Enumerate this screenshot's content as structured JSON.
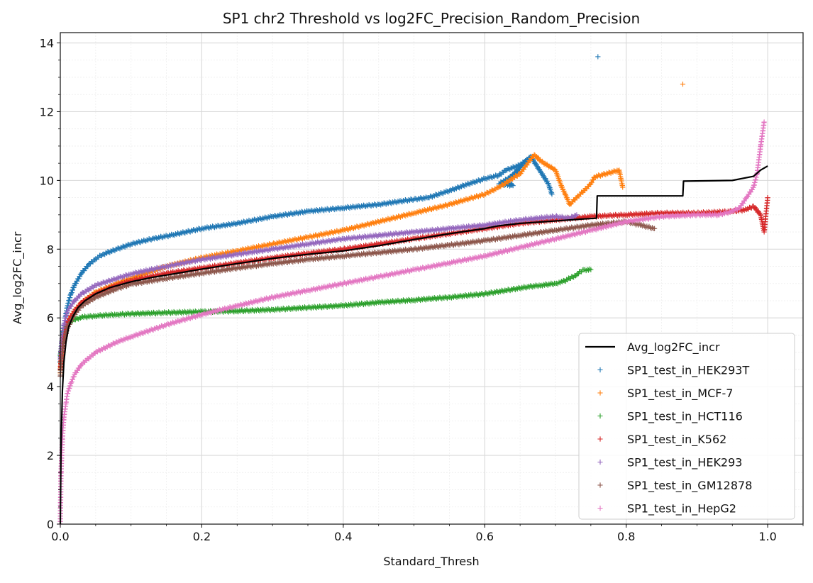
{
  "chart_data": {
    "type": "scatter",
    "title": "SP1 chr2 Threshold vs log2FC_Precision_Random_Precision",
    "xlabel": "Standard_Thresh",
    "ylabel": "Avg_log2FC_incr",
    "xlim": [
      0.0,
      1.05
    ],
    "ylim": [
      0,
      14.3
    ],
    "xticks": [
      0.0,
      0.2,
      0.4,
      0.6,
      0.8,
      1.0
    ],
    "xtick_labels": [
      "0.0",
      "0.2",
      "0.4",
      "0.6",
      "0.8",
      "1.0"
    ],
    "yticks": [
      0,
      2,
      4,
      6,
      8,
      10,
      12,
      14
    ],
    "ytick_labels": [
      "0",
      "2",
      "4",
      "6",
      "8",
      "10",
      "12",
      "14"
    ],
    "grid": true,
    "minor_grid": true,
    "legend_position": "lower-right",
    "line": {
      "name": "Avg_log2FC_incr",
      "color": "#000000",
      "x": [
        0.0,
        0.001,
        0.003,
        0.005,
        0.008,
        0.012,
        0.018,
        0.025,
        0.035,
        0.05,
        0.07,
        0.1,
        0.13,
        0.16,
        0.2,
        0.25,
        0.3,
        0.35,
        0.4,
        0.45,
        0.5,
        0.55,
        0.6,
        0.62,
        0.65,
        0.7,
        0.72,
        0.74,
        0.758,
        0.759,
        0.8,
        0.85,
        0.88,
        0.881,
        0.95,
        0.98,
        0.99,
        1.0
      ],
      "y": [
        0.0,
        2.2,
        3.9,
        4.7,
        5.3,
        5.75,
        6.05,
        6.3,
        6.5,
        6.7,
        6.88,
        7.05,
        7.18,
        7.28,
        7.42,
        7.58,
        7.73,
        7.85,
        7.95,
        8.1,
        8.28,
        8.45,
        8.6,
        8.68,
        8.75,
        8.82,
        8.85,
        8.88,
        8.9,
        9.55,
        9.55,
        9.55,
        9.55,
        9.98,
        10.0,
        10.12,
        10.3,
        10.42
      ]
    },
    "series": [
      {
        "name": "SP1_test_in_HEK293T",
        "color": "#1f77b4",
        "x": [
          0.0,
          0.002,
          0.004,
          0.007,
          0.01,
          0.015,
          0.02,
          0.03,
          0.04,
          0.05,
          0.06,
          0.08,
          0.1,
          0.13,
          0.16,
          0.2,
          0.25,
          0.3,
          0.35,
          0.4,
          0.45,
          0.5,
          0.52,
          0.55,
          0.57,
          0.6,
          0.62,
          0.63,
          0.65,
          0.66,
          0.63,
          0.64,
          0.62,
          0.645,
          0.655,
          0.665,
          0.69,
          0.695,
          0.76
        ],
        "y": [
          4.7,
          5.2,
          5.6,
          6.0,
          6.35,
          6.7,
          6.95,
          7.3,
          7.55,
          7.72,
          7.85,
          8.0,
          8.15,
          8.3,
          8.42,
          8.6,
          8.75,
          8.95,
          9.1,
          9.2,
          9.3,
          9.45,
          9.5,
          9.7,
          9.85,
          10.05,
          10.15,
          10.3,
          10.45,
          10.6,
          9.95,
          9.85,
          9.9,
          10.2,
          10.5,
          10.7,
          9.9,
          9.6,
          13.6
        ]
      },
      {
        "name": "SP1_test_in_MCF-7",
        "color": "#ff7f0e",
        "x": [
          0.0,
          0.002,
          0.005,
          0.01,
          0.02,
          0.03,
          0.05,
          0.08,
          0.1,
          0.15,
          0.2,
          0.25,
          0.3,
          0.35,
          0.4,
          0.45,
          0.5,
          0.55,
          0.6,
          0.62,
          0.65,
          0.67,
          0.68,
          0.7,
          0.71,
          0.715,
          0.72,
          0.73,
          0.74,
          0.75,
          0.755,
          0.79,
          0.795,
          0.88
        ],
        "y": [
          4.4,
          5.0,
          5.5,
          5.9,
          6.2,
          6.45,
          6.75,
          7.0,
          7.15,
          7.5,
          7.75,
          7.95,
          8.15,
          8.35,
          8.55,
          8.8,
          9.05,
          9.3,
          9.6,
          9.8,
          10.2,
          10.75,
          10.55,
          10.3,
          9.75,
          9.55,
          9.3,
          9.5,
          9.7,
          9.9,
          10.1,
          10.3,
          9.8,
          12.8
        ]
      },
      {
        "name": "SP1_test_in_HCT116",
        "color": "#2ca02c",
        "x": [
          0.0,
          0.003,
          0.006,
          0.01,
          0.02,
          0.03,
          0.05,
          0.08,
          0.1,
          0.15,
          0.2,
          0.25,
          0.3,
          0.35,
          0.4,
          0.45,
          0.5,
          0.55,
          0.6,
          0.63,
          0.66,
          0.68,
          0.7,
          0.71,
          0.72,
          0.73,
          0.735,
          0.74,
          0.75
        ],
        "y": [
          4.9,
          5.4,
          5.7,
          5.85,
          5.95,
          6.02,
          6.06,
          6.1,
          6.12,
          6.15,
          6.18,
          6.2,
          6.24,
          6.3,
          6.36,
          6.45,
          6.52,
          6.6,
          6.7,
          6.8,
          6.9,
          6.95,
          7.0,
          7.05,
          7.15,
          7.25,
          7.35,
          7.4,
          7.4
        ]
      },
      {
        "name": "SP1_test_in_K562",
        "color": "#d62728",
        "x": [
          0.0,
          0.002,
          0.005,
          0.01,
          0.02,
          0.03,
          0.05,
          0.08,
          0.1,
          0.15,
          0.2,
          0.25,
          0.3,
          0.35,
          0.4,
          0.45,
          0.5,
          0.55,
          0.6,
          0.65,
          0.7,
          0.75,
          0.8,
          0.85,
          0.9,
          0.95,
          0.97,
          0.98,
          0.99,
          0.995,
          1.0
        ],
        "y": [
          4.5,
          5.0,
          5.5,
          5.9,
          6.2,
          6.45,
          6.7,
          6.95,
          7.08,
          7.3,
          7.45,
          7.6,
          7.75,
          7.88,
          8.0,
          8.15,
          8.3,
          8.45,
          8.6,
          8.75,
          8.85,
          8.95,
          9.0,
          9.05,
          9.05,
          9.1,
          9.15,
          9.25,
          9.0,
          8.5,
          9.5
        ]
      },
      {
        "name": "SP1_test_in_HEK293",
        "color": "#9467bd",
        "x": [
          0.0,
          0.002,
          0.005,
          0.01,
          0.02,
          0.03,
          0.05,
          0.08,
          0.1,
          0.15,
          0.2,
          0.25,
          0.3,
          0.35,
          0.4,
          0.45,
          0.5,
          0.55,
          0.6,
          0.65,
          0.7,
          0.72,
          0.73
        ],
        "y": [
          4.8,
          5.3,
          5.8,
          6.2,
          6.5,
          6.7,
          6.95,
          7.15,
          7.28,
          7.5,
          7.7,
          7.85,
          8.0,
          8.15,
          8.3,
          8.4,
          8.5,
          8.6,
          8.7,
          8.85,
          8.95,
          8.9,
          9.0
        ]
      },
      {
        "name": "SP1_test_in_GM12878",
        "color": "#8c564b",
        "x": [
          0.0,
          0.002,
          0.005,
          0.01,
          0.02,
          0.03,
          0.05,
          0.08,
          0.1,
          0.15,
          0.2,
          0.25,
          0.3,
          0.35,
          0.4,
          0.45,
          0.5,
          0.55,
          0.6,
          0.65,
          0.7,
          0.75,
          0.8,
          0.82,
          0.84
        ],
        "y": [
          4.3,
          4.8,
          5.3,
          5.7,
          6.1,
          6.35,
          6.6,
          6.85,
          6.98,
          7.15,
          7.3,
          7.45,
          7.58,
          7.7,
          7.8,
          7.9,
          8.0,
          8.12,
          8.25,
          8.4,
          8.55,
          8.7,
          8.8,
          8.7,
          8.6
        ]
      },
      {
        "name": "SP1_test_in_HepG2",
        "color": "#e377c2",
        "x": [
          0.0,
          0.001,
          0.003,
          0.005,
          0.008,
          0.01,
          0.015,
          0.02,
          0.03,
          0.05,
          0.08,
          0.1,
          0.15,
          0.2,
          0.25,
          0.3,
          0.35,
          0.4,
          0.45,
          0.5,
          0.55,
          0.6,
          0.65,
          0.7,
          0.75,
          0.8,
          0.85,
          0.9,
          0.93,
          0.95,
          0.96,
          0.97,
          0.98,
          0.985,
          0.99,
          0.995
        ],
        "y": [
          0.0,
          1.5,
          2.5,
          3.1,
          3.5,
          3.8,
          4.1,
          4.35,
          4.65,
          5.0,
          5.3,
          5.45,
          5.8,
          6.1,
          6.35,
          6.6,
          6.8,
          7.0,
          7.2,
          7.4,
          7.6,
          7.8,
          8.05,
          8.3,
          8.55,
          8.8,
          8.95,
          9.0,
          9.0,
          9.1,
          9.2,
          9.5,
          9.8,
          10.2,
          11.0,
          11.7
        ]
      }
    ]
  }
}
